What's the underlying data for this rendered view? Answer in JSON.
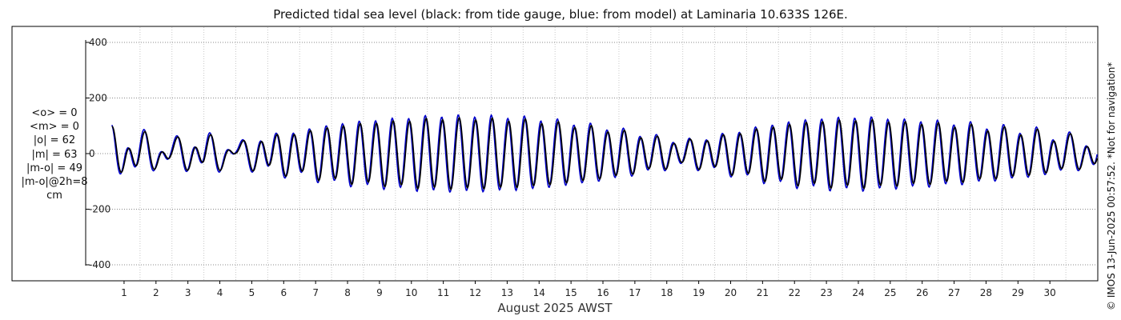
{
  "title": "Predicted tidal sea level (black: from tide gauge, blue: from model) at Laminaria 10.633S 126E.",
  "xlabel": "August 2025 AWST",
  "copyright": "© IMOS 13-Jun-2025 00:57:52. *Not for navigation*",
  "stats": {
    "lines": [
      "<o> = 0",
      "<m> = 0",
      "|o| = 62",
      "|m| = 63",
      "|m-o| = 49",
      "|m-o|@2h=8"
    ],
    "unit": "cm"
  },
  "colors": {
    "observed": "#000000",
    "model": "#0000cc",
    "grid": "#888888",
    "vgrid": "#c8c8c8"
  },
  "chart_data": {
    "type": "line",
    "title": "Predicted tidal sea level (black: from tide gauge, blue: from model) at Laminaria 10.633S 126E.",
    "xlabel": "August 2025 AWST",
    "ylabel": "",
    "xlim": [
      0,
      31
    ],
    "ylim": [
      -450,
      400
    ],
    "yticks": [
      -400,
      -200,
      0,
      200,
      400
    ],
    "xticks": [
      1,
      2,
      3,
      4,
      5,
      6,
      7,
      8,
      9,
      10,
      11,
      12,
      13,
      14,
      15,
      16,
      17,
      18,
      19,
      20,
      21,
      22,
      23,
      24,
      25,
      26,
      27,
      28,
      29,
      30
    ],
    "grid": true,
    "semidiurnal_amplitude_by_day": [
      [
        0.2,
        60
      ],
      [
        1,
        50
      ],
      [
        2,
        28
      ],
      [
        3,
        52
      ],
      [
        4,
        22
      ],
      [
        5,
        58
      ],
      [
        6,
        74
      ],
      [
        7,
        96
      ],
      [
        8,
        108
      ],
      [
        9,
        116
      ],
      [
        10,
        124
      ],
      [
        11,
        126
      ],
      [
        12,
        124
      ],
      [
        13,
        120
      ],
      [
        14,
        110
      ],
      [
        15,
        96
      ],
      [
        16,
        80
      ],
      [
        17,
        58
      ],
      [
        18,
        40
      ],
      [
        19,
        56
      ],
      [
        20,
        80
      ],
      [
        21,
        100
      ],
      [
        22,
        114
      ],
      [
        23,
        120
      ],
      [
        24,
        120
      ],
      [
        25,
        112
      ],
      [
        26,
        106
      ],
      [
        27,
        98
      ],
      [
        28,
        86
      ],
      [
        29,
        76
      ],
      [
        30,
        54
      ],
      [
        30.9,
        44
      ]
    ],
    "diurnal_amplitude_by_day": [
      [
        0.2,
        38
      ],
      [
        2,
        32
      ],
      [
        4,
        30
      ],
      [
        5,
        18
      ],
      [
        7,
        8
      ],
      [
        11,
        4
      ],
      [
        16,
        8
      ],
      [
        18,
        12
      ],
      [
        20,
        10
      ],
      [
        25,
        4
      ],
      [
        29,
        14
      ],
      [
        30.9,
        24
      ]
    ],
    "series": [
      {
        "name": "tide gauge",
        "color": "#000000"
      },
      {
        "name": "model",
        "color": "#0000cc"
      }
    ]
  }
}
